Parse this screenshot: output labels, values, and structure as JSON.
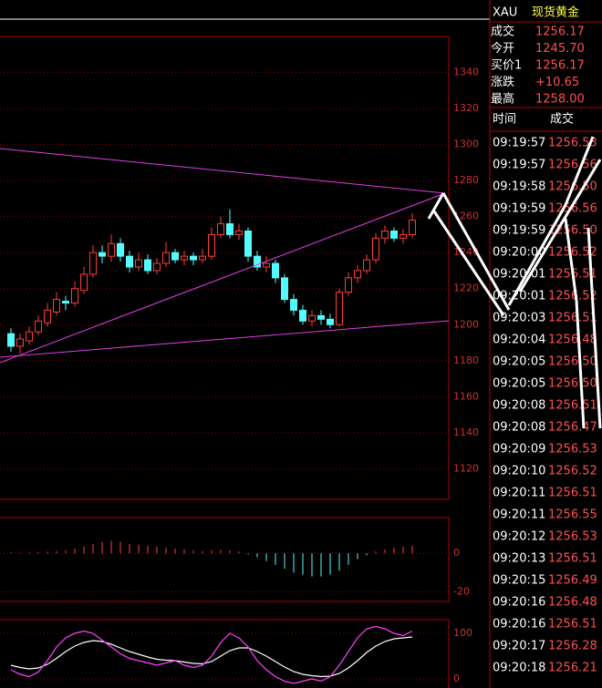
{
  "chart_data": [
    {
      "type": "candlestick",
      "open": [
        1195,
        1188,
        1191,
        1196,
        1201,
        1207,
        1213,
        1212,
        1219,
        1228,
        1240,
        1238,
        1245,
        1238,
        1232,
        1236,
        1230,
        1234,
        1240,
        1236,
        1238,
        1236,
        1238,
        1250,
        1256,
        1250,
        1252,
        1238,
        1232,
        1234,
        1226,
        1214,
        1208,
        1202,
        1205,
        1203,
        1200,
        1218,
        1226,
        1230,
        1236,
        1248,
        1252,
        1248,
        1250
      ],
      "high": [
        1198,
        1195,
        1199,
        1205,
        1212,
        1218,
        1216,
        1224,
        1232,
        1244,
        1244,
        1250,
        1248,
        1241,
        1240,
        1239,
        1237,
        1246,
        1242,
        1241,
        1240,
        1242,
        1254,
        1260,
        1264,
        1256,
        1254,
        1241,
        1238,
        1236,
        1228,
        1217,
        1211,
        1208,
        1208,
        1206,
        1220,
        1229,
        1233,
        1239,
        1251,
        1255,
        1254,
        1253,
        1262
      ],
      "low": [
        1185,
        1184,
        1189,
        1194,
        1199,
        1205,
        1208,
        1210,
        1217,
        1226,
        1234,
        1235,
        1235,
        1229,
        1230,
        1228,
        1228,
        1232,
        1234,
        1233,
        1233,
        1234,
        1236,
        1248,
        1248,
        1247,
        1235,
        1230,
        1229,
        1223,
        1212,
        1205,
        1200,
        1199,
        1200,
        1198,
        1199,
        1216,
        1223,
        1228,
        1234,
        1245,
        1246,
        1245,
        1248
      ],
      "close": [
        1188,
        1192,
        1196,
        1202,
        1208,
        1214,
        1212,
        1220,
        1228,
        1240,
        1238,
        1245,
        1238,
        1232,
        1236,
        1230,
        1234,
        1240,
        1236,
        1238,
        1236,
        1238,
        1250,
        1256,
        1250,
        1252,
        1238,
        1232,
        1234,
        1226,
        1214,
        1208,
        1202,
        1205,
        1203,
        1200,
        1218,
        1226,
        1230,
        1236,
        1248,
        1252,
        1248,
        1250,
        1258
      ],
      "up_color": "#ff3c3c",
      "down_color": "#54fcfc",
      "ylim": [
        1103,
        1360
      ],
      "yticks": [
        1120,
        1140,
        1160,
        1180,
        1200,
        1220,
        1240,
        1260,
        1280,
        1300,
        1320,
        1340
      ],
      "grid": true
    },
    {
      "type": "bar",
      "values": [
        0.5,
        0.3,
        0.4,
        0.6,
        0.8,
        1.2,
        1.5,
        2.5,
        3.5,
        5,
        6,
        6.5,
        6,
        5,
        4.5,
        4,
        3.5,
        3,
        2.5,
        2,
        1.5,
        1.2,
        1.5,
        1.8,
        1.5,
        1,
        -0.5,
        -2,
        -4,
        -6,
        -8,
        -10,
        -11,
        -12,
        -12,
        -11,
        -9,
        -6,
        -3,
        -1,
        1,
        2,
        3,
        3.5,
        4
      ],
      "up_color": "#ff3c3c",
      "down_color": "#54fcfc",
      "ylim": [
        -25,
        18.6
      ],
      "yticks": [
        -20,
        0
      ],
      "grid": true
    },
    {
      "type": "line",
      "series": [
        {
          "color": "#ffffff",
          "values": [
            30,
            25,
            22,
            24,
            32,
            45,
            60,
            72,
            80,
            84,
            82,
            76,
            68,
            60,
            54,
            48,
            43,
            41,
            40,
            37,
            34,
            33,
            38,
            50,
            62,
            68,
            68,
            60,
            50,
            38,
            26,
            16,
            10,
            7,
            5,
            6,
            12,
            24,
            40,
            58,
            72,
            82,
            88,
            90,
            92
          ]
        },
        {
          "color": "#ff40ff",
          "values": [
            20,
            10,
            5,
            15,
            40,
            70,
            90,
            100,
            105,
            100,
            85,
            70,
            55,
            45,
            40,
            35,
            30,
            35,
            40,
            30,
            25,
            30,
            50,
            80,
            100,
            90,
            70,
            40,
            20,
            5,
            -5,
            -10,
            -5,
            0,
            -5,
            5,
            30,
            60,
            90,
            110,
            115,
            110,
            100,
            95,
            105
          ]
        }
      ],
      "ylim": [
        -20,
        130
      ],
      "yticks": [
        0,
        100
      ],
      "grid": true
    }
  ],
  "panel": {
    "symbol": "XAU",
    "name": "现货黄金",
    "quote": [
      {
        "label": "成交",
        "value": "1256.17"
      },
      {
        "label": "今开",
        "value": "1245.70"
      },
      {
        "label": "买价1",
        "value": "1256.17"
      },
      {
        "label": "涨跌",
        "value": "+10.65"
      },
      {
        "label": "最高",
        "value": "1258.00"
      }
    ],
    "trades_header": [
      "时间",
      "成交"
    ],
    "trades": [
      [
        "09:19:57",
        "1256.53"
      ],
      [
        "09:19:57",
        "1256.56"
      ],
      [
        "09:19:58",
        "1256.50"
      ],
      [
        "09:19:59",
        "1256.56"
      ],
      [
        "09:19:59",
        "1256.50"
      ],
      [
        "09:20:00",
        "1256.52"
      ],
      [
        "09:20:01",
        "1256.51"
      ],
      [
        "09:20:01",
        "1256.52"
      ],
      [
        "09:20:03",
        "1256.51"
      ],
      [
        "09:20:04",
        "1256.48"
      ],
      [
        "09:20:05",
        "1256.50"
      ],
      [
        "09:20:05",
        "1256.50"
      ],
      [
        "09:20:08",
        "1256.51"
      ],
      [
        "09:20:08",
        "1256.47"
      ],
      [
        "09:20:09",
        "1256.53"
      ],
      [
        "09:20:10",
        "1256.52"
      ],
      [
        "09:20:11",
        "1256.51"
      ],
      [
        "09:20:11",
        "1256.55"
      ],
      [
        "09:20:12",
        "1256.53"
      ],
      [
        "09:20:13",
        "1256.51"
      ],
      [
        "09:20:15",
        "1256.49"
      ],
      [
        "09:20:16",
        "1256.48"
      ],
      [
        "09:20:16",
        "1256.51"
      ],
      [
        "09:20:17",
        "1256.28"
      ],
      [
        "09:20:18",
        "1256.21"
      ]
    ]
  }
}
